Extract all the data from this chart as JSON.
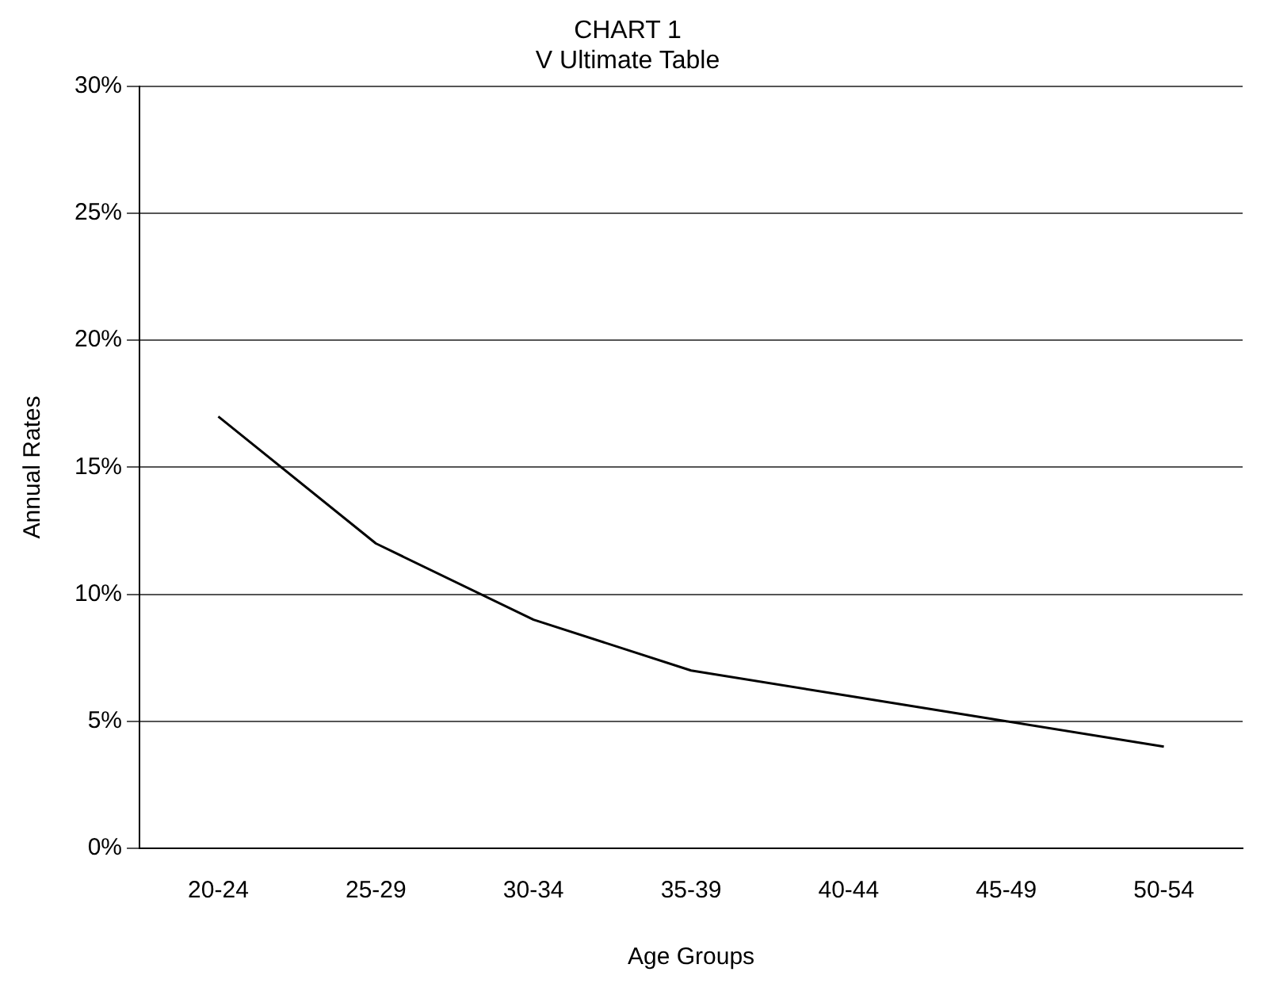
{
  "chart_data": {
    "type": "line",
    "title": "CHART 1",
    "subtitle": "V Ultimate Table",
    "xlabel": "Age Groups",
    "ylabel": "Annual Rates",
    "categories": [
      "20-24",
      "25-29",
      "30-34",
      "35-39",
      "40-44",
      "45-49",
      "50-54"
    ],
    "series": [
      {
        "color": "#000000",
        "values": [
          17,
          12,
          9,
          7,
          6,
          5,
          4
        ]
      }
    ],
    "ylim": [
      0,
      30
    ],
    "yticks": [
      {
        "value": 0,
        "label": "0%"
      },
      {
        "value": 5,
        "label": "5%"
      },
      {
        "value": 10,
        "label": "10%"
      },
      {
        "value": 15,
        "label": "15%"
      },
      {
        "value": 20,
        "label": "20%"
      },
      {
        "value": 25,
        "label": "25%"
      },
      {
        "value": 30,
        "label": "30%"
      }
    ],
    "grid": "y",
    "legend": false,
    "marker": "none",
    "line_style": "solid"
  }
}
